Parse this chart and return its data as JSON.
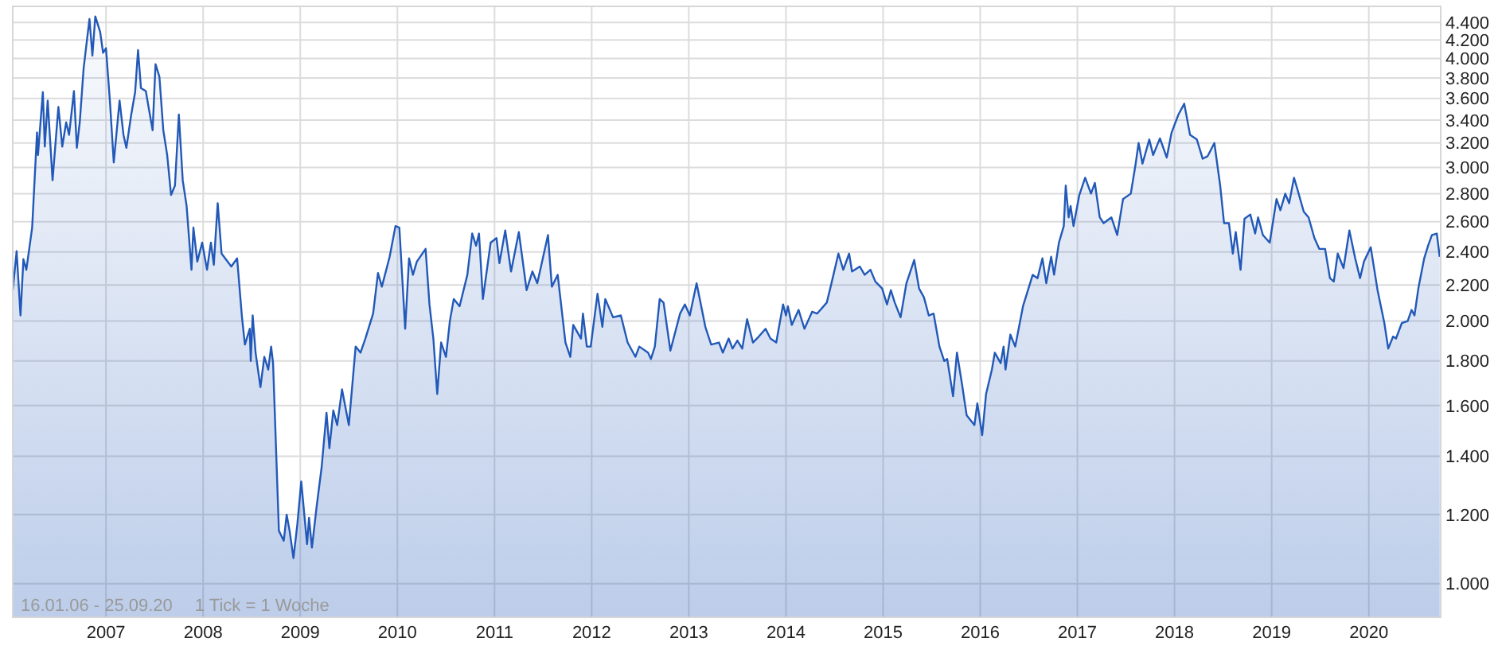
{
  "chart_data": {
    "type": "area",
    "x": [
      2006.04,
      2006.08,
      2006.12,
      2006.15,
      2006.18,
      2006.24,
      2006.29,
      2006.3,
      2006.35,
      2006.37,
      2006.4,
      2006.45,
      2006.51,
      2006.55,
      2006.59,
      2006.62,
      2006.67,
      2006.7,
      2006.73,
      2006.77,
      2006.83,
      2006.86,
      2006.89,
      2006.94,
      2006.97,
      2007.0,
      2007.04,
      2007.08,
      2007.14,
      2007.18,
      2007.21,
      2007.26,
      2007.3,
      2007.33,
      2007.36,
      2007.41,
      2007.48,
      2007.51,
      2007.55,
      2007.59,
      2007.63,
      2007.67,
      2007.71,
      2007.75,
      2007.79,
      2007.83,
      2007.88,
      2007.9,
      2007.94,
      2007.99,
      2008.04,
      2008.08,
      2008.11,
      2008.15,
      2008.19,
      2008.29,
      2008.35,
      2008.4,
      2008.43,
      2008.48,
      2008.49,
      2008.51,
      2008.54,
      2008.59,
      2008.63,
      2008.67,
      2008.7,
      2008.72,
      2008.78,
      2008.83,
      2008.86,
      2008.89,
      2008.93,
      2008.97,
      2009.01,
      2009.07,
      2009.09,
      2009.12,
      2009.17,
      2009.22,
      2009.27,
      2009.3,
      2009.34,
      2009.38,
      2009.43,
      2009.5,
      2009.57,
      2009.62,
      2009.67,
      2009.75,
      2009.8,
      2009.84,
      2009.92,
      2009.98,
      2010.02,
      2010.08,
      2010.12,
      2010.16,
      2010.2,
      2010.29,
      2010.33,
      2010.37,
      2010.41,
      2010.45,
      2010.5,
      2010.54,
      2010.58,
      2010.64,
      2010.72,
      2010.77,
      2010.81,
      2010.84,
      2010.88,
      2010.96,
      2011.02,
      2011.05,
      2011.11,
      2011.17,
      2011.25,
      2011.33,
      2011.39,
      2011.44,
      2011.55,
      2011.59,
      2011.65,
      2011.73,
      2011.78,
      2011.81,
      2011.89,
      2011.91,
      2011.95,
      2011.99,
      2012.06,
      2012.11,
      2012.14,
      2012.22,
      2012.3,
      2012.37,
      2012.45,
      2012.49,
      2012.58,
      2012.61,
      2012.65,
      2012.7,
      2012.74,
      2012.81,
      2012.91,
      2012.96,
      2013.01,
      2013.08,
      2013.17,
      2013.23,
      2013.31,
      2013.35,
      2013.41,
      2013.45,
      2013.5,
      2013.55,
      2013.6,
      2013.66,
      2013.72,
      2013.79,
      2013.84,
      2013.9,
      2013.97,
      2014.0,
      2014.02,
      2014.06,
      2014.13,
      2014.19,
      2014.27,
      2014.32,
      2014.42,
      2014.46,
      2014.54,
      2014.59,
      2014.65,
      2014.68,
      2014.76,
      2014.81,
      2014.87,
      2014.92,
      2014.99,
      2015.04,
      2015.08,
      2015.12,
      2015.18,
      2015.24,
      2015.32,
      2015.37,
      2015.42,
      2015.47,
      2015.52,
      2015.58,
      2015.63,
      2015.66,
      2015.72,
      2015.76,
      2015.81,
      2015.86,
      2015.94,
      2015.97,
      2016.02,
      2016.06,
      2016.12,
      2016.15,
      2016.21,
      2016.24,
      2016.26,
      2016.31,
      2016.36,
      2016.44,
      2016.48,
      2016.54,
      2016.59,
      2016.64,
      2016.68,
      2016.73,
      2016.76,
      2016.81,
      2016.86,
      2016.88,
      2016.91,
      2016.93,
      2016.96,
      2017.02,
      2017.08,
      2017.14,
      2017.18,
      2017.23,
      2017.27,
      2017.35,
      2017.41,
      2017.47,
      2017.55,
      2017.6,
      2017.63,
      2017.67,
      2017.74,
      2017.78,
      2017.85,
      2017.92,
      2017.97,
      2018.04,
      2018.1,
      2018.16,
      2018.23,
      2018.29,
      2018.34,
      2018.41,
      2018.47,
      2018.51,
      2018.56,
      2018.6,
      2018.63,
      2018.68,
      2018.72,
      2018.78,
      2018.83,
      2018.86,
      2018.91,
      2018.98,
      2019.05,
      2019.09,
      2019.14,
      2019.18,
      2019.23,
      2019.27,
      2019.33,
      2019.38,
      2019.44,
      2019.49,
      2019.55,
      2019.6,
      2019.64,
      2019.68,
      2019.74,
      2019.8,
      2019.86,
      2019.91,
      2019.95,
      2020.02,
      2020.09,
      2020.16,
      2020.2,
      2020.25,
      2020.28,
      2020.34,
      2020.4,
      2020.44,
      2020.47,
      2020.51,
      2020.57,
      2020.61,
      2020.65,
      2020.7,
      2020.73
    ],
    "series": [
      {
        "color": "#2259b8",
        "values": [
          2170,
          2405,
          2030,
          2355,
          2290,
          2560,
          3290,
          3100,
          3660,
          3170,
          3580,
          2900,
          3520,
          3170,
          3380,
          3270,
          3670,
          3160,
          3380,
          3900,
          4440,
          4030,
          4470,
          4290,
          4060,
          4110,
          3580,
          3040,
          3580,
          3270,
          3160,
          3450,
          3660,
          4090,
          3700,
          3670,
          3310,
          3940,
          3810,
          3310,
          3100,
          2790,
          2860,
          3450,
          2900,
          2710,
          2290,
          2560,
          2340,
          2460,
          2290,
          2460,
          2320,
          2730,
          2390,
          2310,
          2360,
          2020,
          1880,
          1960,
          1800,
          2030,
          1840,
          1680,
          1820,
          1760,
          1870,
          1790,
          1150,
          1120,
          1200,
          1150,
          1070,
          1170,
          1310,
          1110,
          1190,
          1100,
          1230,
          1360,
          1570,
          1430,
          1580,
          1520,
          1670,
          1520,
          1870,
          1840,
          1910,
          2040,
          2270,
          2190,
          2370,
          2570,
          2560,
          1960,
          2360,
          2260,
          2340,
          2420,
          2090,
          1910,
          1650,
          1890,
          1820,
          2000,
          2120,
          2080,
          2260,
          2520,
          2440,
          2520,
          2120,
          2460,
          2490,
          2330,
          2540,
          2280,
          2530,
          2170,
          2280,
          2210,
          2510,
          2190,
          2260,
          1890,
          1820,
          1980,
          1910,
          2040,
          1870,
          1870,
          2150,
          1970,
          2120,
          2020,
          2030,
          1890,
          1820,
          1870,
          1840,
          1810,
          1870,
          2120,
          2100,
          1850,
          2040,
          2090,
          2030,
          2210,
          1970,
          1880,
          1890,
          1840,
          1910,
          1860,
          1900,
          1860,
          2010,
          1890,
          1920,
          1960,
          1910,
          1890,
          2090,
          2030,
          2080,
          1980,
          2060,
          1960,
          2050,
          2040,
          2100,
          2190,
          2390,
          2290,
          2390,
          2280,
          2310,
          2260,
          2290,
          2220,
          2180,
          2090,
          2170,
          2100,
          2020,
          2210,
          2350,
          2180,
          2130,
          2030,
          2040,
          1870,
          1800,
          1810,
          1640,
          1840,
          1700,
          1560,
          1520,
          1610,
          1480,
          1650,
          1760,
          1840,
          1790,
          1870,
          1760,
          1930,
          1870,
          2080,
          2150,
          2260,
          2240,
          2360,
          2210,
          2370,
          2260,
          2460,
          2570,
          2860,
          2630,
          2710,
          2570,
          2790,
          2920,
          2800,
          2880,
          2630,
          2590,
          2630,
          2510,
          2760,
          2800,
          3030,
          3200,
          3030,
          3230,
          3100,
          3240,
          3080,
          3290,
          3450,
          3550,
          3270,
          3230,
          3070,
          3090,
          3200,
          2860,
          2590,
          2590,
          2390,
          2530,
          2290,
          2620,
          2650,
          2520,
          2630,
          2510,
          2460,
          2760,
          2680,
          2800,
          2730,
          2920,
          2820,
          2670,
          2630,
          2490,
          2420,
          2420,
          2240,
          2220,
          2390,
          2300,
          2540,
          2360,
          2240,
          2340,
          2430,
          2170,
          1990,
          1860,
          1920,
          1910,
          1990,
          2000,
          2060,
          2030,
          2180,
          2360,
          2440,
          2510,
          2520,
          2370
        ]
      }
    ],
    "xlim": [
      2006.04,
      2020.74
    ],
    "xticks": [
      2007,
      2008,
      2009,
      2010,
      2011,
      2012,
      2013,
      2014,
      2015,
      2016,
      2017,
      2018,
      2019,
      2020
    ],
    "log": true,
    "ylim": [
      915,
      4590
    ],
    "yticks": [
      {
        "value": 1000,
        "label": "1.000"
      },
      {
        "value": 1200,
        "label": "1.200"
      },
      {
        "value": 1400,
        "label": "1.400"
      },
      {
        "value": 1600,
        "label": "1.600"
      },
      {
        "value": 1800,
        "label": "1.800"
      },
      {
        "value": 2000,
        "label": "2.000"
      },
      {
        "value": 2200,
        "label": "2.200"
      },
      {
        "value": 2400,
        "label": "2.400"
      },
      {
        "value": 2600,
        "label": "2.600"
      },
      {
        "value": 2800,
        "label": "2.800"
      },
      {
        "value": 3000,
        "label": "3.000"
      },
      {
        "value": 3200,
        "label": "3.200"
      },
      {
        "value": 3400,
        "label": "3.400"
      },
      {
        "value": 3600,
        "label": "3.600"
      },
      {
        "value": 3800,
        "label": "3.800"
      },
      {
        "value": 4000,
        "label": "4.000"
      },
      {
        "value": 4200,
        "label": "4.200"
      },
      {
        "value": 4400,
        "label": "4.400"
      }
    ],
    "grid": true,
    "annotations": [
      "16.01.06 - 25.09.20",
      "1 Tick = 1 Woche"
    ]
  }
}
